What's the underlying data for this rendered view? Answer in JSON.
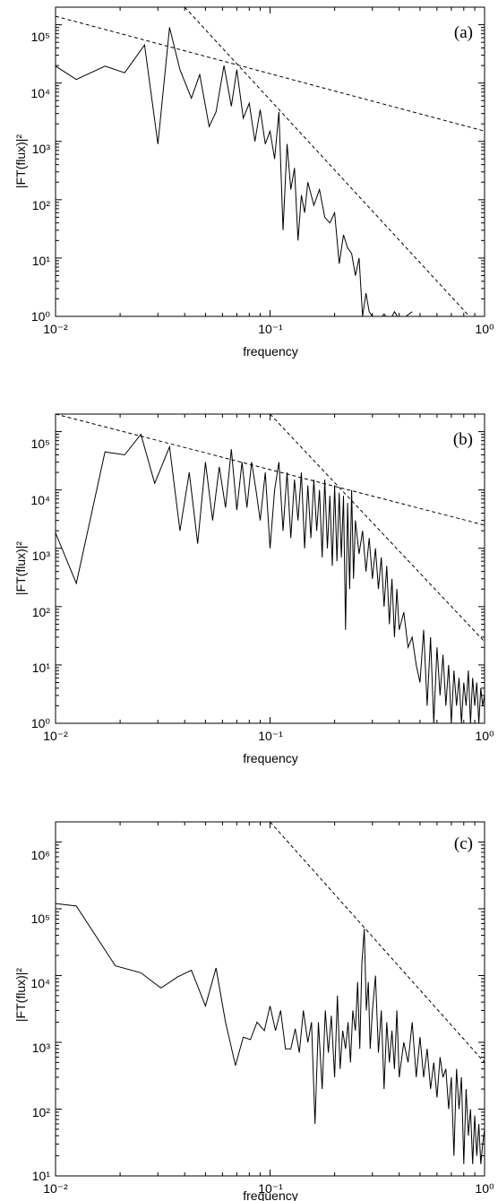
{
  "chart_data": [
    {
      "type": "line",
      "panel_label": "(a)",
      "xlabel": "frequency",
      "ylabel": "|FT(flux)|²",
      "xscale": "log",
      "yscale": "log",
      "xlim": [
        0.01,
        1
      ],
      "ylim": [
        1,
        200000
      ],
      "xtick_labels": [
        "10⁻²",
        "10⁻¹",
        "10⁰"
      ],
      "ytick_labels": [
        "10⁰",
        "10¹",
        "10²",
        "10³",
        "10⁴",
        "10⁵"
      ],
      "series": [
        {
          "style": "solid",
          "x": [
            0.0099,
            0.0125,
            0.017,
            0.021,
            0.026,
            0.03,
            0.034,
            0.038,
            0.043,
            0.047,
            0.052,
            0.056,
            0.061,
            0.066,
            0.07,
            0.075,
            0.08,
            0.085,
            0.09,
            0.095,
            0.1,
            0.105,
            0.11,
            0.115,
            0.12,
            0.125,
            0.13,
            0.135,
            0.14,
            0.145,
            0.15,
            0.16,
            0.17,
            0.18,
            0.19,
            0.2,
            0.21,
            0.22,
            0.23,
            0.24,
            0.25,
            0.26,
            0.27,
            0.28,
            0.29,
            0.3,
            0.32,
            0.34,
            0.36,
            0.38,
            0.4,
            0.43,
            0.46
          ],
          "y": [
            20000,
            11500,
            19500,
            15000,
            45000,
            900,
            90000,
            17000,
            5500,
            14000,
            1800,
            3200,
            20000,
            4000,
            17000,
            2500,
            4500,
            1000,
            3500,
            900,
            1500,
            500,
            3200,
            30,
            900,
            150,
            350,
            20,
            120,
            60,
            200,
            80,
            150,
            50,
            40,
            60,
            8,
            25,
            15,
            12,
            5,
            10,
            1,
            2.5,
            1.2,
            1,
            0.8,
            1.1,
            0.8,
            1.2,
            0.9,
            1.0,
            1.2
          ]
        },
        {
          "style": "dashed",
          "x": [
            0.01,
            1
          ],
          "y": [
            140000,
            1500
          ]
        },
        {
          "style": "dashed",
          "x": [
            0.04,
            0.85
          ],
          "y": [
            200000,
            1
          ]
        }
      ]
    },
    {
      "type": "line",
      "panel_label": "(b)",
      "xlabel": "frequency",
      "ylabel": "|FT(flux)|²",
      "xscale": "log",
      "yscale": "log",
      "xlim": [
        0.01,
        1
      ],
      "ylim": [
        1,
        200000
      ],
      "xtick_labels": [
        "10⁻²",
        "10⁻¹",
        "10⁰"
      ],
      "ytick_labels": [
        "10⁰",
        "10¹",
        "10²",
        "10³",
        "10⁴",
        "10⁵"
      ],
      "series": [
        {
          "style": "solid",
          "x": [
            0.0099,
            0.0125,
            0.017,
            0.021,
            0.025,
            0.029,
            0.034,
            0.038,
            0.042,
            0.046,
            0.05,
            0.054,
            0.058,
            0.062,
            0.066,
            0.07,
            0.074,
            0.078,
            0.082,
            0.086,
            0.09,
            0.095,
            0.1,
            0.105,
            0.11,
            0.115,
            0.12,
            0.125,
            0.13,
            0.135,
            0.14,
            0.145,
            0.15,
            0.155,
            0.16,
            0.165,
            0.17,
            0.175,
            0.18,
            0.185,
            0.19,
            0.195,
            0.2,
            0.205,
            0.21,
            0.215,
            0.22,
            0.225,
            0.23,
            0.235,
            0.24,
            0.245,
            0.25,
            0.26,
            0.27,
            0.28,
            0.29,
            0.3,
            0.31,
            0.32,
            0.33,
            0.34,
            0.35,
            0.36,
            0.37,
            0.38,
            0.39,
            0.4,
            0.42,
            0.44,
            0.46,
            0.48,
            0.5,
            0.52,
            0.54,
            0.56,
            0.58,
            0.6,
            0.62,
            0.64,
            0.66,
            0.68,
            0.7,
            0.72,
            0.74,
            0.76,
            0.78,
            0.8,
            0.82,
            0.84,
            0.86,
            0.88,
            0.9,
            0.92,
            0.94,
            0.96,
            0.98,
            1.0
          ],
          "y": [
            2000,
            250,
            45000,
            40000,
            90000,
            13000,
            55000,
            2000,
            20000,
            1200,
            30000,
            3000,
            25000,
            5000,
            50000,
            4500,
            30000,
            5000,
            30000,
            10000,
            3000,
            20000,
            1000,
            10000,
            30000,
            2000,
            20000,
            1500,
            15000,
            3000,
            20000,
            1000,
            12000,
            1500,
            15000,
            2000,
            10000,
            700,
            15000,
            1000,
            8000,
            500,
            12000,
            600,
            9000,
            700,
            8000,
            40,
            6000,
            200,
            10000,
            300,
            3000,
            800,
            2000,
            400,
            1500,
            300,
            1000,
            200,
            700,
            100,
            500,
            50,
            300,
            30,
            200,
            40,
            80,
            20,
            30,
            10,
            5,
            40,
            2,
            30,
            1,
            20,
            3,
            15,
            2,
            10,
            1,
            8,
            2,
            6,
            1,
            5,
            2,
            8,
            1,
            6,
            2,
            5,
            1,
            4,
            2,
            3
          ]
        },
        {
          "style": "dashed",
          "x": [
            0.01,
            1
          ],
          "y": [
            200000,
            2500
          ]
        },
        {
          "style": "dashed",
          "x": [
            0.1,
            1
          ],
          "y": [
            200000,
            25
          ]
        }
      ]
    },
    {
      "type": "line",
      "panel_label": "(c)",
      "xlabel": "frequency",
      "ylabel": "|FT(flux)|²",
      "xscale": "log",
      "yscale": "log",
      "xlim": [
        0.01,
        1
      ],
      "ylim": [
        10,
        2000000
      ],
      "xtick_labels": [
        "10⁻²",
        "10⁻¹",
        "10⁰"
      ],
      "ytick_labels": [
        "10¹",
        "10²",
        "10³",
        "10⁴",
        "10⁵",
        "10⁶"
      ],
      "series": [
        {
          "style": "solid",
          "x": [
            0.0099,
            0.0125,
            0.019,
            0.025,
            0.031,
            0.037,
            0.043,
            0.05,
            0.056,
            0.062,
            0.069,
            0.075,
            0.081,
            0.087,
            0.094,
            0.1,
            0.106,
            0.112,
            0.118,
            0.125,
            0.131,
            0.137,
            0.143,
            0.15,
            0.156,
            0.162,
            0.168,
            0.175,
            0.181,
            0.187,
            0.193,
            0.2,
            0.206,
            0.212,
            0.218,
            0.225,
            0.231,
            0.237,
            0.243,
            0.25,
            0.256,
            0.262,
            0.268,
            0.275,
            0.281,
            0.287,
            0.293,
            0.3,
            0.31,
            0.32,
            0.33,
            0.34,
            0.35,
            0.36,
            0.37,
            0.38,
            0.39,
            0.4,
            0.42,
            0.44,
            0.46,
            0.48,
            0.5,
            0.52,
            0.54,
            0.56,
            0.58,
            0.6,
            0.62,
            0.64,
            0.66,
            0.68,
            0.7,
            0.72,
            0.74,
            0.76,
            0.78,
            0.8,
            0.82,
            0.84,
            0.86,
            0.88,
            0.9,
            0.92,
            0.94,
            0.96,
            0.98,
            1.0
          ],
          "y": [
            120000,
            110000,
            14000,
            11000,
            6500,
            9500,
            12000,
            3500,
            13000,
            2000,
            450,
            1200,
            1100,
            2000,
            1500,
            3500,
            1500,
            3000,
            800,
            800,
            1600,
            700,
            3000,
            1000,
            2000,
            60,
            2000,
            200,
            3000,
            700,
            2500,
            300,
            5000,
            400,
            1500,
            800,
            2000,
            500,
            3000,
            1500,
            8000,
            800,
            15000,
            50000,
            3000,
            8000,
            800,
            3000,
            10000,
            700,
            3000,
            200,
            2000,
            500,
            1500,
            400,
            3000,
            300,
            1000,
            500,
            2000,
            300,
            1200,
            300,
            800,
            200,
            500,
            150,
            600,
            300,
            400,
            100,
            300,
            20,
            400,
            100,
            300,
            15,
            200,
            40,
            100,
            15,
            80,
            20,
            60,
            15,
            30,
            50
          ]
        },
        {
          "style": "dashed",
          "x": [
            0.1,
            1
          ],
          "y": [
            2000000,
            500
          ]
        }
      ]
    }
  ]
}
